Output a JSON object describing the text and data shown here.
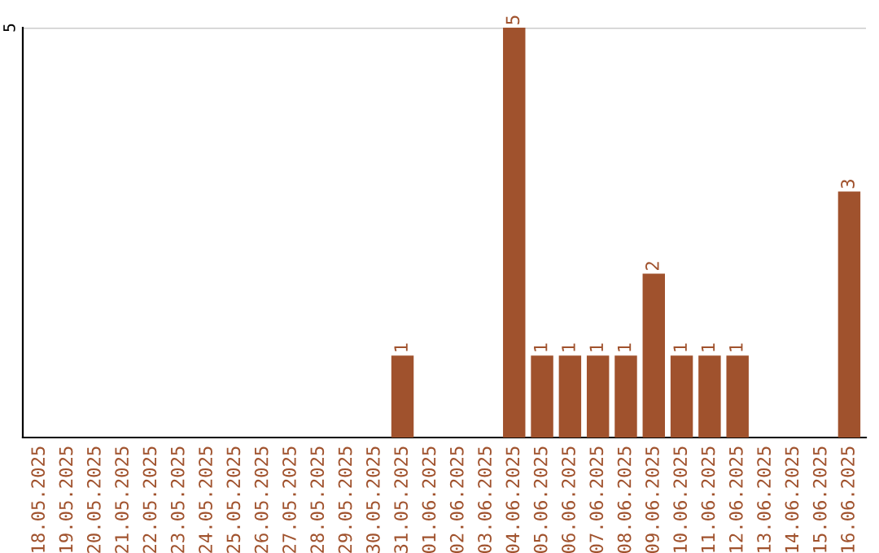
{
  "chart_data": {
    "type": "bar",
    "categories": [
      "18.05.2025",
      "19.05.2025",
      "20.05.2025",
      "21.05.2025",
      "22.05.2025",
      "23.05.2025",
      "24.05.2025",
      "25.05.2025",
      "26.05.2025",
      "27.05.2025",
      "28.05.2025",
      "29.05.2025",
      "30.05.2025",
      "31.05.2025",
      "01.06.2025",
      "02.06.2025",
      "03.06.2025",
      "04.06.2025",
      "05.06.2025",
      "06.06.2025",
      "07.06.2025",
      "08.06.2025",
      "09.06.2025",
      "10.06.2025",
      "11.06.2025",
      "12.06.2025",
      "13.06.2025",
      "14.06.2025",
      "15.06.2025",
      "16.06.2025"
    ],
    "values": [
      null,
      null,
      null,
      null,
      null,
      null,
      null,
      null,
      null,
      null,
      null,
      null,
      null,
      1,
      null,
      null,
      null,
      5,
      1,
      1,
      1,
      1,
      2,
      1,
      1,
      1,
      null,
      null,
      null,
      3
    ],
    "value_labels": [
      null,
      null,
      null,
      null,
      null,
      null,
      null,
      null,
      null,
      null,
      null,
      null,
      null,
      "1",
      null,
      null,
      null,
      "5",
      "1",
      "1",
      "1",
      "1",
      "2",
      "1",
      "1",
      "1",
      null,
      null,
      null,
      "3"
    ],
    "color": "#a0522d",
    "ylim": [
      0,
      5
    ],
    "ref_lines": [
      {
        "axis": "y",
        "value": 5,
        "label": "5",
        "color": "#cccccc"
      }
    ]
  }
}
